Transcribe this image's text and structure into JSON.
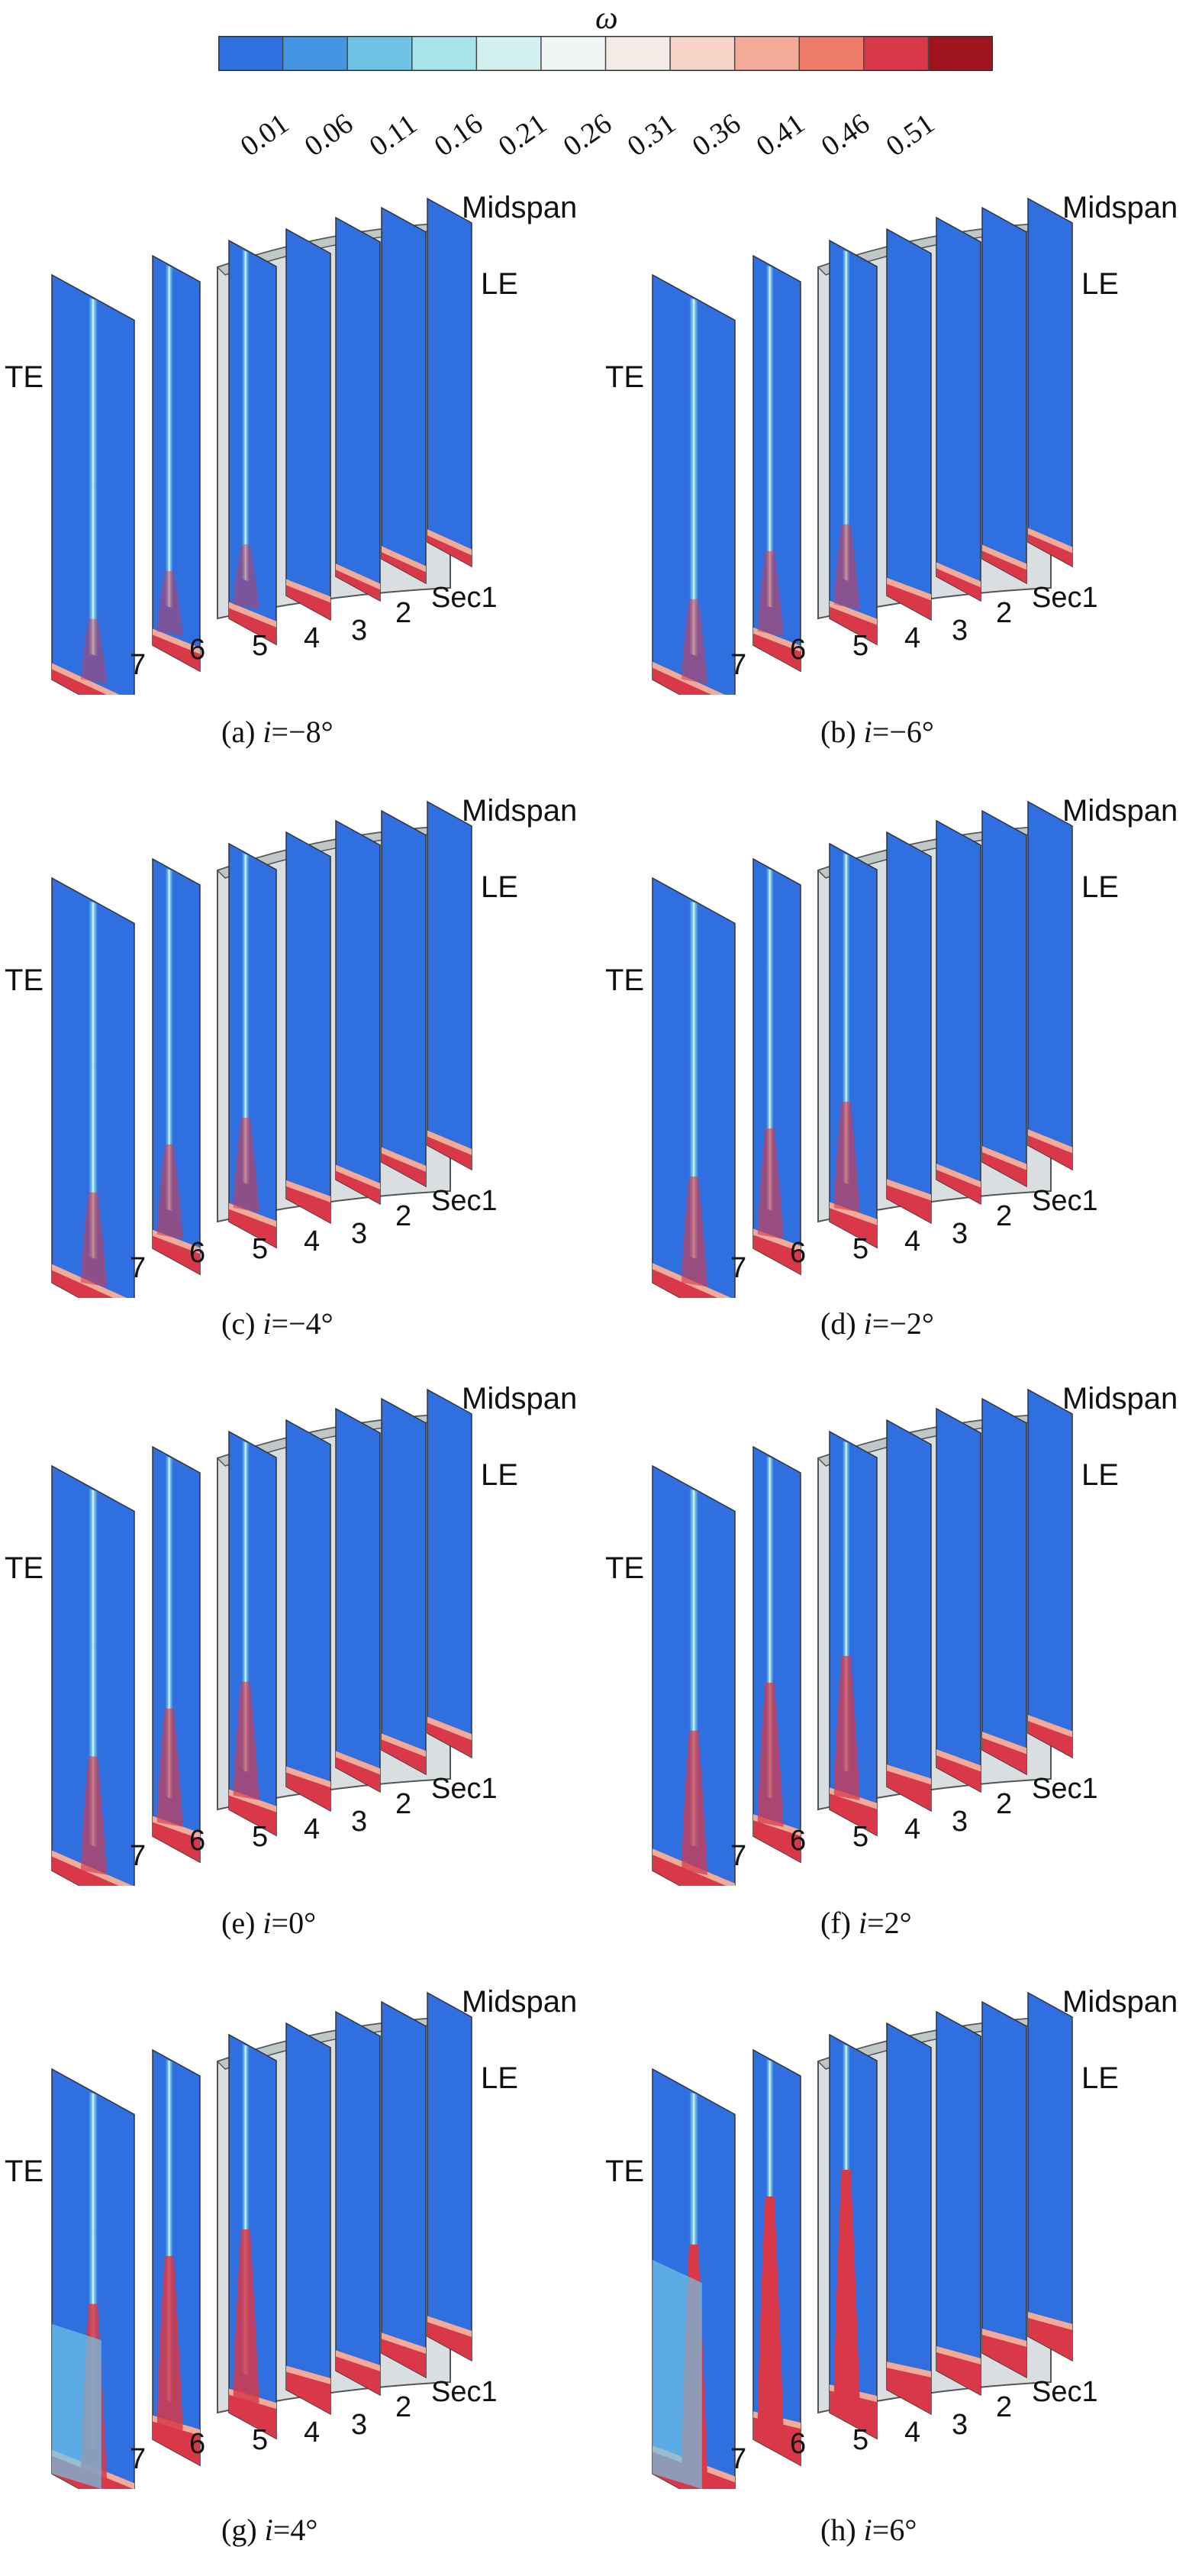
{
  "colorbar": {
    "title": "ω",
    "ticks": [
      "0.01",
      "0.06",
      "0.11",
      "0.16",
      "0.21",
      "0.26",
      "0.31",
      "0.36",
      "0.41",
      "0.46",
      "0.51"
    ],
    "colors": [
      "#2f6fe0",
      "#4496e2",
      "#6fc4e6",
      "#a6e4ea",
      "#d2f0f0",
      "#eff6f3",
      "#f5ebe6",
      "#f7d3c7",
      "#f3ab98",
      "#ee7a6a",
      "#d83848",
      "#a0141e"
    ]
  },
  "labels": {
    "midspan": "Midspan",
    "le": "LE",
    "te": "TE",
    "sec1": "Sec1",
    "sections": [
      "7",
      "6",
      "5",
      "4",
      "3",
      "2"
    ]
  },
  "panels": [
    {
      "letter": "(a)",
      "var": "i",
      "value": "=−8°",
      "intensity": 0.15
    },
    {
      "letter": "(b)",
      "var": "i",
      "value": "=−6°",
      "intensity": 0.25
    },
    {
      "letter": "(c)",
      "var": "i",
      "value": "=−4°",
      "intensity": 0.3
    },
    {
      "letter": "(d)",
      "var": "i",
      "value": "=−2°",
      "intensity": 0.38
    },
    {
      "letter": "(e)",
      "var": "i",
      "value": "=0°",
      "intensity": 0.42
    },
    {
      "letter": "(f)",
      "var": "i",
      "value": "=2°",
      "intensity": 0.55
    },
    {
      "letter": "(g)",
      "var": "i",
      "value": "=4°",
      "intensity": 0.7
    },
    {
      "letter": "(h)",
      "var": "i",
      "value": "=6°",
      "intensity": 1.0
    }
  ]
}
